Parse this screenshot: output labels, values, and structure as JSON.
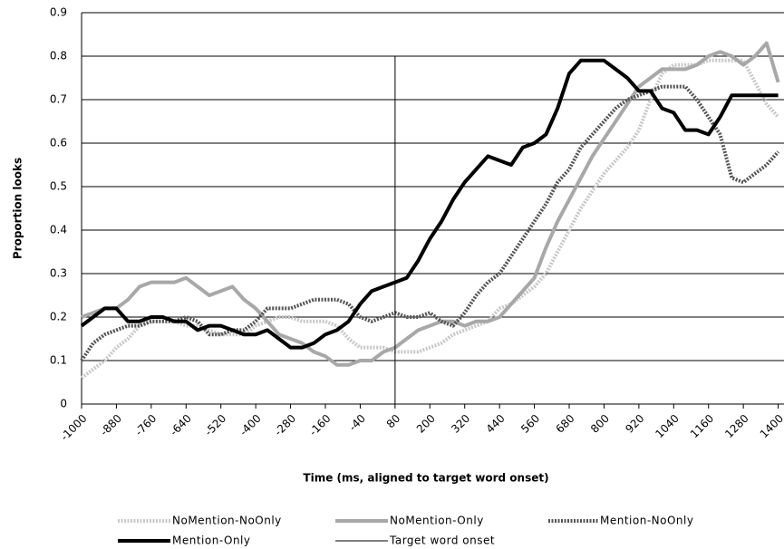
{
  "chart_data": {
    "type": "line",
    "x_label": "Time (ms, aligned to target word onset)",
    "y_label": "Proportion looks",
    "xlim": [
      -1000,
      1420
    ],
    "ylim": [
      0,
      0.9
    ],
    "xticks": [
      -1000,
      -880,
      -760,
      -640,
      -520,
      -400,
      -280,
      -160,
      -40,
      80,
      200,
      320,
      440,
      560,
      680,
      800,
      920,
      1040,
      1160,
      1280,
      1400
    ],
    "yticks": [
      0,
      0.1,
      0.2,
      0.3,
      0.4,
      0.5,
      0.6,
      0.7,
      0.8,
      0.9
    ],
    "grid": true,
    "legend": "bottom",
    "x": [
      -1000,
      -960,
      -920,
      -880,
      -840,
      -800,
      -760,
      -720,
      -680,
      -640,
      -600,
      -560,
      -520,
      -480,
      -440,
      -400,
      -360,
      -320,
      -280,
      -240,
      -200,
      -160,
      -120,
      -80,
      -40,
      0,
      40,
      80,
      120,
      160,
      200,
      240,
      280,
      320,
      360,
      400,
      440,
      480,
      520,
      560,
      600,
      640,
      680,
      720,
      760,
      800,
      840,
      880,
      920,
      960,
      1000,
      1040,
      1080,
      1120,
      1160,
      1200,
      1240,
      1280,
      1320,
      1360,
      1400
    ],
    "series": [
      {
        "name": "NoMention-NoOnly",
        "color": "#c8c8c8",
        "style": "dotted",
        "values": [
          0.06,
          0.08,
          0.1,
          0.13,
          0.15,
          0.18,
          0.19,
          0.19,
          0.19,
          0.18,
          0.18,
          0.17,
          0.16,
          0.16,
          0.16,
          0.18,
          0.19,
          0.2,
          0.2,
          0.19,
          0.19,
          0.19,
          0.18,
          0.15,
          0.13,
          0.13,
          0.13,
          0.12,
          0.12,
          0.12,
          0.13,
          0.14,
          0.16,
          0.17,
          0.18,
          0.19,
          0.22,
          0.23,
          0.25,
          0.27,
          0.3,
          0.35,
          0.4,
          0.45,
          0.49,
          0.53,
          0.56,
          0.59,
          0.63,
          0.7,
          0.76,
          0.78,
          0.78,
          0.78,
          0.79,
          0.79,
          0.79,
          0.79,
          0.74,
          0.69,
          0.66
        ]
      },
      {
        "name": "NoMention-Only",
        "color": "#a8a8a8",
        "style": "solid",
        "values": [
          0.2,
          0.21,
          0.22,
          0.22,
          0.24,
          0.27,
          0.28,
          0.28,
          0.28,
          0.29,
          0.27,
          0.25,
          0.26,
          0.27,
          0.24,
          0.22,
          0.19,
          0.16,
          0.15,
          0.14,
          0.12,
          0.11,
          0.09,
          0.09,
          0.1,
          0.1,
          0.12,
          0.13,
          0.15,
          0.17,
          0.18,
          0.19,
          0.19,
          0.18,
          0.19,
          0.19,
          0.2,
          0.23,
          0.26,
          0.29,
          0.36,
          0.42,
          0.47,
          0.52,
          0.57,
          0.61,
          0.65,
          0.69,
          0.73,
          0.75,
          0.77,
          0.77,
          0.77,
          0.78,
          0.8,
          0.81,
          0.8,
          0.78,
          0.8,
          0.83,
          0.74
        ]
      },
      {
        "name": "Mention-NoOnly",
        "color": "#555555",
        "style": "dotted",
        "values": [
          0.1,
          0.14,
          0.16,
          0.17,
          0.18,
          0.18,
          0.19,
          0.19,
          0.19,
          0.2,
          0.19,
          0.16,
          0.16,
          0.17,
          0.17,
          0.19,
          0.22,
          0.22,
          0.22,
          0.23,
          0.24,
          0.24,
          0.24,
          0.23,
          0.2,
          0.19,
          0.2,
          0.21,
          0.2,
          0.2,
          0.21,
          0.19,
          0.18,
          0.21,
          0.25,
          0.28,
          0.3,
          0.34,
          0.38,
          0.42,
          0.46,
          0.51,
          0.54,
          0.59,
          0.62,
          0.65,
          0.68,
          0.7,
          0.71,
          0.72,
          0.73,
          0.73,
          0.73,
          0.7,
          0.66,
          0.62,
          0.52,
          0.51,
          0.53,
          0.55,
          0.58
        ]
      },
      {
        "name": "Mention-Only",
        "color": "#000000",
        "style": "solid",
        "values": [
          0.18,
          0.2,
          0.22,
          0.22,
          0.19,
          0.19,
          0.2,
          0.2,
          0.19,
          0.19,
          0.17,
          0.18,
          0.18,
          0.17,
          0.16,
          0.16,
          0.17,
          0.15,
          0.13,
          0.13,
          0.14,
          0.16,
          0.17,
          0.19,
          0.23,
          0.26,
          0.27,
          0.28,
          0.29,
          0.33,
          0.38,
          0.42,
          0.47,
          0.51,
          0.54,
          0.57,
          0.56,
          0.55,
          0.59,
          0.6,
          0.62,
          0.68,
          0.76,
          0.79,
          0.79,
          0.79,
          0.77,
          0.75,
          0.72,
          0.72,
          0.68,
          0.67,
          0.63,
          0.63,
          0.62,
          0.66,
          0.71,
          0.71,
          0.71,
          0.71,
          0.71
        ]
      },
      {
        "name": "Target word onset",
        "color": "#000000",
        "style": "thin",
        "x": [
          80,
          80
        ],
        "values": [
          0,
          0.8
        ]
      }
    ]
  }
}
